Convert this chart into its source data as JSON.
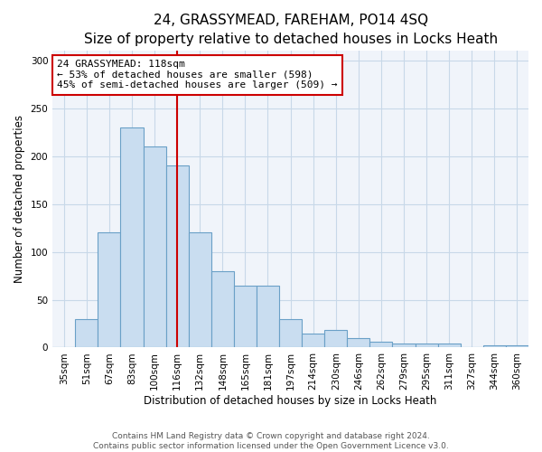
{
  "title": "24, GRASSYMEAD, FAREHAM, PO14 4SQ",
  "subtitle": "Size of property relative to detached houses in Locks Heath",
  "xlabel": "Distribution of detached houses by size in Locks Heath",
  "ylabel": "Number of detached properties",
  "categories": [
    "35sqm",
    "51sqm",
    "67sqm",
    "83sqm",
    "100sqm",
    "116sqm",
    "132sqm",
    "148sqm",
    "165sqm",
    "181sqm",
    "197sqm",
    "214sqm",
    "230sqm",
    "246sqm",
    "262sqm",
    "279sqm",
    "295sqm",
    "311sqm",
    "327sqm",
    "344sqm",
    "360sqm"
  ],
  "values": [
    0,
    30,
    120,
    230,
    210,
    190,
    120,
    80,
    65,
    65,
    30,
    15,
    18,
    10,
    6,
    4,
    4,
    4,
    0,
    2,
    2
  ],
  "bar_color": "#c9ddf0",
  "bar_edge_color": "#6aa0c7",
  "marker_line_index": 5,
  "marker_line_color": "#cc0000",
  "annotation_text": "24 GRASSYMEAD: 118sqm\n← 53% of detached houses are smaller (598)\n45% of semi-detached houses are larger (509) →",
  "annotation_box_color": "#ffffff",
  "annotation_box_edge_color": "#cc0000",
  "ylim": [
    0,
    310
  ],
  "yticks": [
    0,
    50,
    100,
    150,
    200,
    250,
    300
  ],
  "footer_line1": "Contains HM Land Registry data © Crown copyright and database right 2024.",
  "footer_line2": "Contains public sector information licensed under the Open Government Licence v3.0.",
  "title_fontsize": 11,
  "subtitle_fontsize": 9.5,
  "label_fontsize": 8.5,
  "tick_fontsize": 7.5,
  "annotation_fontsize": 8,
  "footer_fontsize": 6.5,
  "bg_color": "#f0f4fa"
}
